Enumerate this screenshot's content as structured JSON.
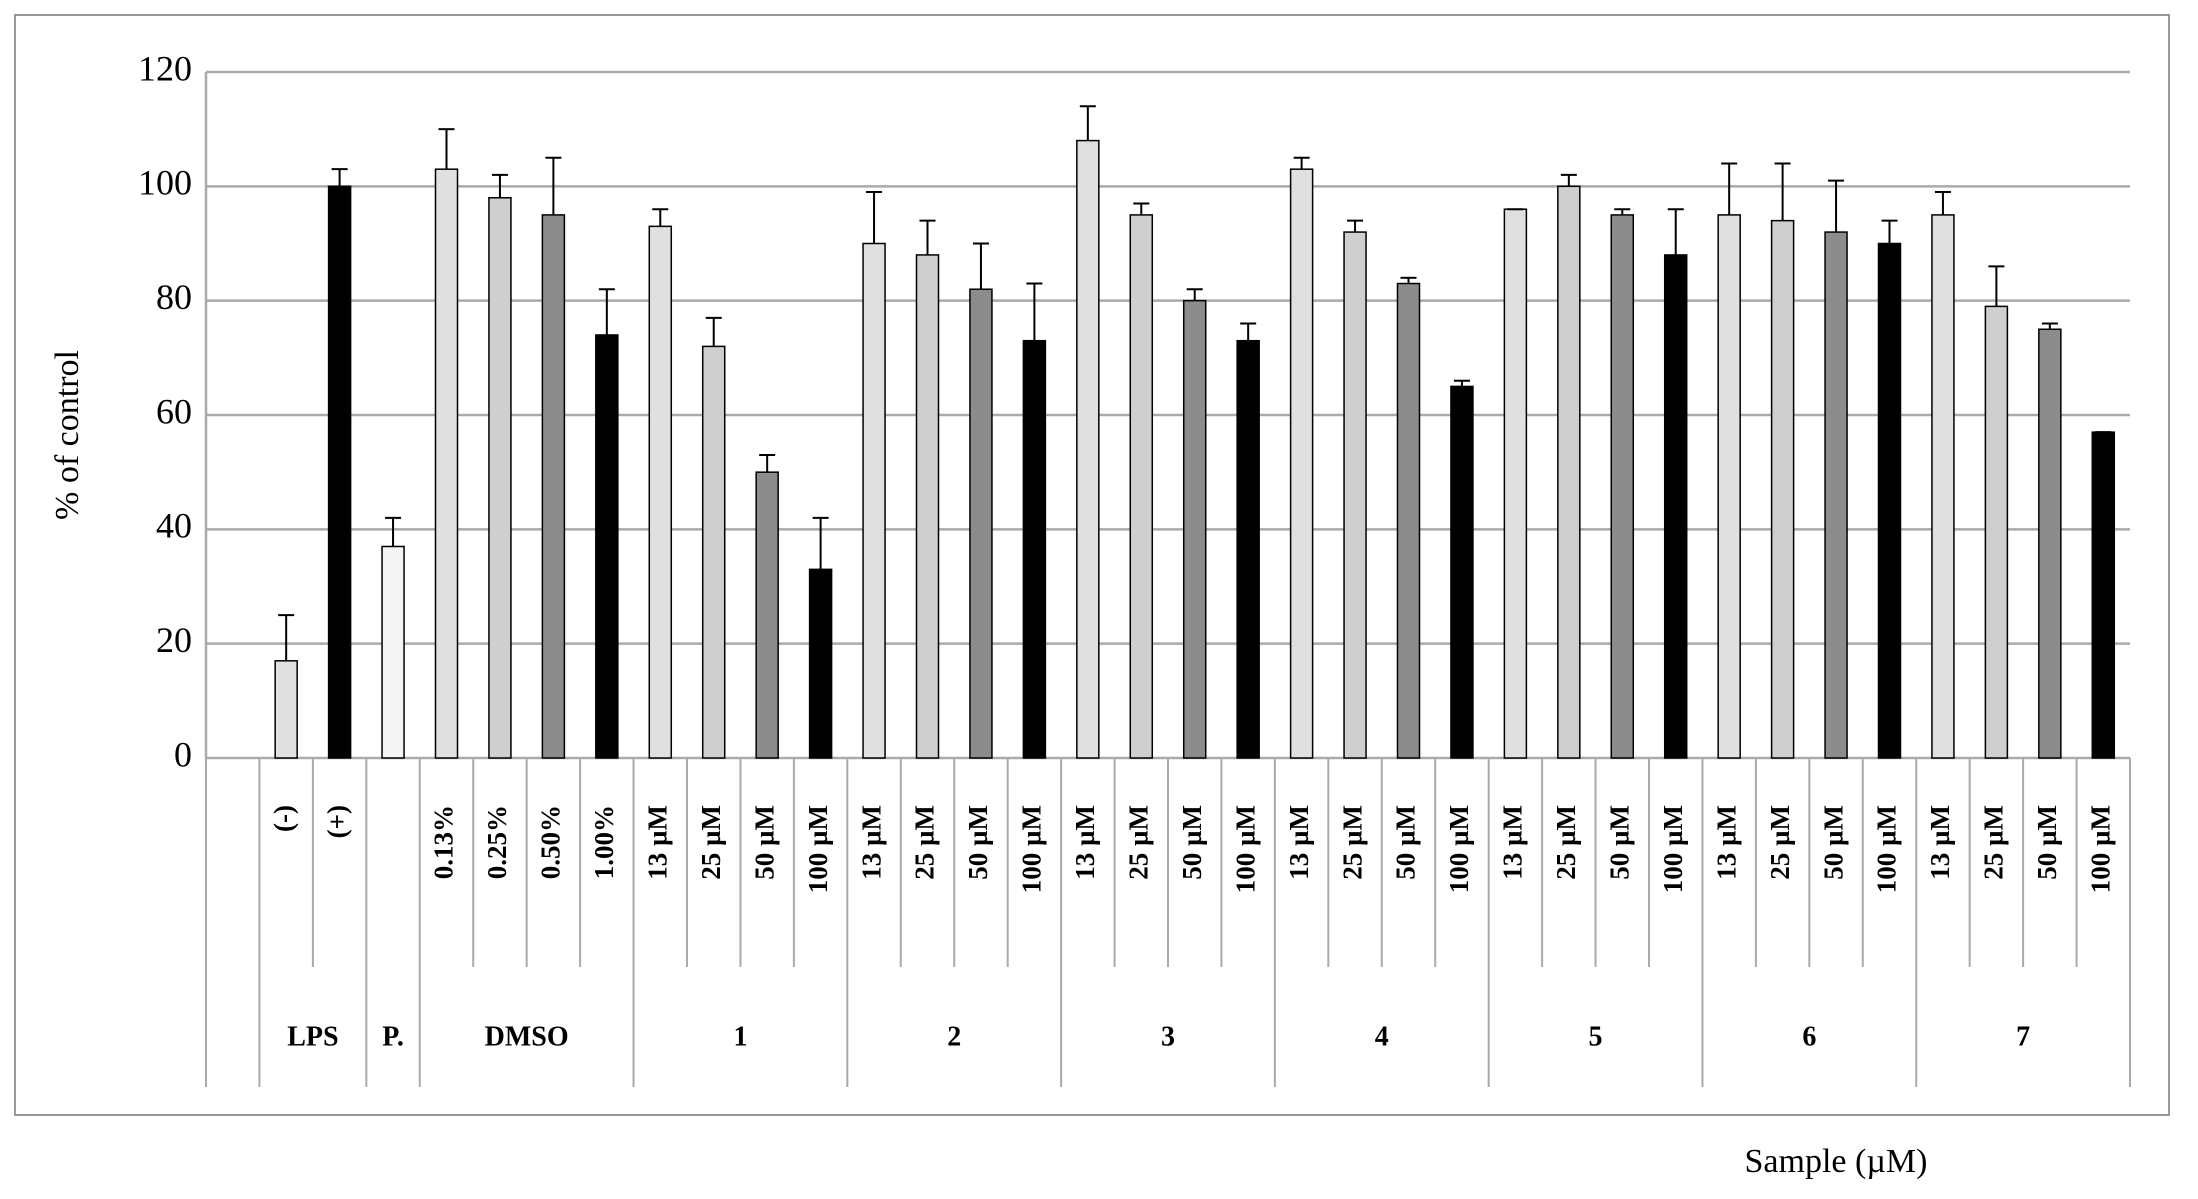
{
  "chart_data": {
    "type": "bar",
    "y_label": "% of control",
    "x_label": "Sample (µM)",
    "ylim": [
      0,
      120
    ],
    "yticks": [
      0,
      20,
      40,
      60,
      80,
      100,
      120
    ],
    "grid": true,
    "groups": [
      "LPS",
      "P.",
      "DMSO",
      "1",
      "2",
      "3",
      "4",
      "5",
      "6",
      "7"
    ],
    "category_group": [
      null,
      "LPS",
      "LPS",
      "P.",
      "DMSO",
      "DMSO",
      "DMSO",
      "DMSO",
      "1",
      "1",
      "1",
      "1",
      "2",
      "2",
      "2",
      "2",
      "3",
      "3",
      "3",
      "3",
      "4",
      "4",
      "4",
      "4",
      "5",
      "5",
      "5",
      "5",
      "6",
      "6",
      "6",
      "6",
      "7",
      "7",
      "7",
      "7"
    ],
    "categories": [
      null,
      "(-)",
      "(+)",
      null,
      "0.13%",
      "0.25%",
      "0.50%",
      "1.00%",
      "13 µM",
      "25 µM",
      "50 µM",
      "100 µM",
      "13 µM",
      "25 µM",
      "50 µM",
      "100 µM",
      "13 µM",
      "25 µM",
      "50 µM",
      "100 µM",
      "13 µM",
      "25 µM",
      "50 µM",
      "100 µM",
      "13 µM",
      "25 µM",
      "50 µM",
      "100 µM",
      "13 µM",
      "25 µM",
      "50 µM",
      "100 µM",
      "13 µM",
      "25 µM",
      "50 µM",
      "100 µM"
    ],
    "values": [
      null,
      17,
      100,
      37,
      103,
      98,
      95,
      74,
      93,
      72,
      50,
      33,
      90,
      88,
      82,
      73,
      108,
      95,
      80,
      73,
      103,
      92,
      83,
      65,
      96,
      100,
      95,
      88,
      95,
      94,
      92,
      90,
      95,
      79,
      75,
      57
    ],
    "errors": [
      null,
      8,
      3,
      5,
      7,
      4,
      10,
      8,
      3,
      5,
      3,
      9,
      9,
      6,
      8,
      10,
      6,
      2,
      2,
      3,
      2,
      2,
      1,
      1,
      0,
      2,
      1,
      8,
      9,
      10,
      9,
      4,
      4,
      7,
      1,
      0
    ],
    "colors": [
      null,
      "#e0e0e0",
      "#000000",
      "#f4f4f4",
      "#e0e0e0",
      "#cfcfcf",
      "#8c8c8c",
      "#000000",
      "#e0e0e0",
      "#cfcfcf",
      "#8c8c8c",
      "#000000",
      "#e0e0e0",
      "#cfcfcf",
      "#8c8c8c",
      "#000000",
      "#e0e0e0",
      "#cfcfcf",
      "#8c8c8c",
      "#000000",
      "#e0e0e0",
      "#cfcfcf",
      "#8c8c8c",
      "#000000",
      "#e0e0e0",
      "#cfcfcf",
      "#8c8c8c",
      "#000000",
      "#e0e0e0",
      "#cfcfcf",
      "#8c8c8c",
      "#000000",
      "#e0e0e0",
      "#cfcfcf",
      "#8c8c8c",
      "#000000"
    ]
  }
}
